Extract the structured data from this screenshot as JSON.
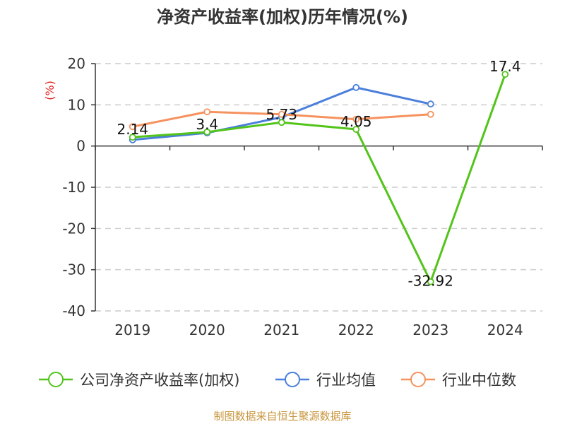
{
  "chart_data": {
    "type": "line",
    "title": "净资产收益率(加权)历年情况(%)",
    "ylabel": "(%)",
    "xlabel": "",
    "categories": [
      "2019",
      "2020",
      "2021",
      "2022",
      "2023",
      "2024"
    ],
    "ylim": [
      -40,
      20
    ],
    "yticks": [
      20,
      10,
      0,
      -10,
      -20,
      -30,
      -40
    ],
    "grid": true,
    "legend_position": "bottom",
    "series": [
      {
        "name": "公司净资产收益率(加权)",
        "color": "#52c41a",
        "values": [
          2.14,
          3.4,
          5.73,
          4.05,
          -32.92,
          17.4
        ],
        "labels": [
          "2.14",
          "3.4",
          "5.73",
          "4.05",
          "-32.92",
          "17.4"
        ]
      },
      {
        "name": "行业均值",
        "color": "#4a7fdb",
        "values": [
          1.5,
          3.2,
          7.0,
          14.2,
          10.2,
          null
        ]
      },
      {
        "name": "行业中位数",
        "color": "#f5925e",
        "values": [
          4.7,
          8.3,
          7.7,
          6.5,
          7.7,
          null
        ]
      }
    ],
    "source": "制图数据来自恒生聚源数据库"
  }
}
